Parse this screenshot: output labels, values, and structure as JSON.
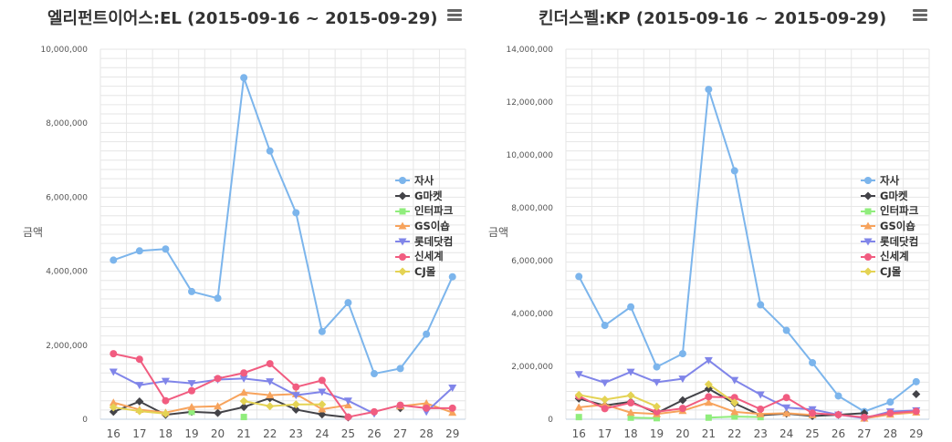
{
  "chart_data": [
    {
      "type": "line",
      "title": "엘리펀트이어스:EL (2015-09-16 ~ 2015-09-29)",
      "ylabel": "금액",
      "xlabel": "",
      "categories": [
        "16",
        "17",
        "18",
        "19",
        "20",
        "21",
        "22",
        "23",
        "24",
        "25",
        "26",
        "27",
        "28",
        "29"
      ],
      "ylim": [
        0,
        10000000
      ],
      "yticks": [
        "0",
        "2,000,000",
        "4,000,000",
        "6,000,000",
        "8,000,000",
        "10,000,000"
      ],
      "grid": true,
      "legend_position": "right",
      "series": [
        {
          "name": "자사",
          "color": "#7cb5ec",
          "marker": "circle",
          "values": [
            4300000,
            4550000,
            4600000,
            3450000,
            3270000,
            9230000,
            7250000,
            5580000,
            2370000,
            3150000,
            1230000,
            1370000,
            2300000,
            3850000
          ]
        },
        {
          "name": "G마켓",
          "color": "#434348",
          "marker": "diamond",
          "values": [
            200000,
            480000,
            120000,
            200000,
            170000,
            330000,
            570000,
            260000,
            130000,
            50000,
            null,
            300000,
            null,
            null
          ]
        },
        {
          "name": "인터파크",
          "color": "#90ed7d",
          "marker": "square",
          "values": [
            null,
            null,
            null,
            200000,
            null,
            60000,
            null,
            null,
            null,
            null,
            null,
            null,
            null,
            null
          ]
        },
        {
          "name": "GS이숍",
          "color": "#f7a35c",
          "marker": "triangle",
          "values": [
            450000,
            260000,
            180000,
            330000,
            350000,
            720000,
            650000,
            680000,
            270000,
            380000,
            null,
            350000,
            430000,
            180000
          ]
        },
        {
          "name": "롯데닷컴",
          "color": "#8085e9",
          "marker": "triangle-down",
          "values": [
            1280000,
            920000,
            1030000,
            970000,
            1070000,
            1100000,
            1020000,
            650000,
            740000,
            500000,
            150000,
            null,
            200000,
            850000
          ]
        },
        {
          "name": "신세계",
          "color": "#f15c80",
          "marker": "circle",
          "values": [
            1770000,
            1620000,
            500000,
            770000,
            1100000,
            1250000,
            1500000,
            870000,
            1050000,
            60000,
            200000,
            380000,
            300000,
            300000
          ]
        },
        {
          "name": "CJ몰",
          "color": "#e4d354",
          "marker": "diamond",
          "values": [
            320000,
            220000,
            150000,
            null,
            null,
            490000,
            350000,
            400000,
            400000,
            null,
            null,
            null,
            null,
            null
          ]
        }
      ]
    },
    {
      "type": "line",
      "title": "킨더스펠:KP (2015-09-16 ~ 2015-09-29)",
      "ylabel": "금액",
      "xlabel": "",
      "categories": [
        "16",
        "17",
        "18",
        "19",
        "20",
        "21",
        "22",
        "23",
        "24",
        "25",
        "26",
        "27",
        "28",
        "29"
      ],
      "ylim": [
        0,
        14000000
      ],
      "yticks": [
        "0",
        "2,000,000",
        "4,000,000",
        "6,000,000",
        "8,000,000",
        "10,000,000",
        "12,000,000",
        "14,000,000"
      ],
      "grid": true,
      "legend_position": "right",
      "series": [
        {
          "name": "자사",
          "color": "#7cb5ec",
          "marker": "circle",
          "values": [
            5400000,
            3550000,
            4250000,
            1980000,
            2480000,
            12480000,
            9400000,
            4330000,
            3360000,
            2140000,
            880000,
            290000,
            650000,
            1420000
          ]
        },
        {
          "name": "G마켓",
          "color": "#434348",
          "marker": "diamond",
          "values": [
            780000,
            520000,
            660000,
            230000,
            720000,
            1150000,
            600000,
            150000,
            210000,
            120000,
            170000,
            230000,
            null,
            950000
          ]
        },
        {
          "name": "인터파크",
          "color": "#90ed7d",
          "marker": "square",
          "values": [
            80000,
            null,
            60000,
            40000,
            null,
            60000,
            100000,
            80000,
            null,
            null,
            null,
            null,
            null,
            null
          ]
        },
        {
          "name": "GS이숍",
          "color": "#f7a35c",
          "marker": "triangle",
          "values": [
            450000,
            550000,
            250000,
            200000,
            320000,
            630000,
            280000,
            200000,
            230000,
            160000,
            null,
            30000,
            180000,
            260000
          ]
        },
        {
          "name": "롯데닷컴",
          "color": "#8085e9",
          "marker": "triangle-down",
          "values": [
            1700000,
            1380000,
            1790000,
            1400000,
            1530000,
            2230000,
            1480000,
            930000,
            440000,
            370000,
            170000,
            40000,
            290000,
            330000
          ]
        },
        {
          "name": "신세계",
          "color": "#f15c80",
          "marker": "circle",
          "values": [
            870000,
            400000,
            620000,
            280000,
            410000,
            850000,
            820000,
            380000,
            820000,
            230000,
            170000,
            70000,
            230000,
            300000
          ]
        },
        {
          "name": "CJ몰",
          "color": "#e4d354",
          "marker": "diamond",
          "values": [
            920000,
            740000,
            900000,
            480000,
            null,
            1320000,
            630000,
            null,
            null,
            null,
            null,
            null,
            null,
            null
          ]
        }
      ]
    }
  ]
}
